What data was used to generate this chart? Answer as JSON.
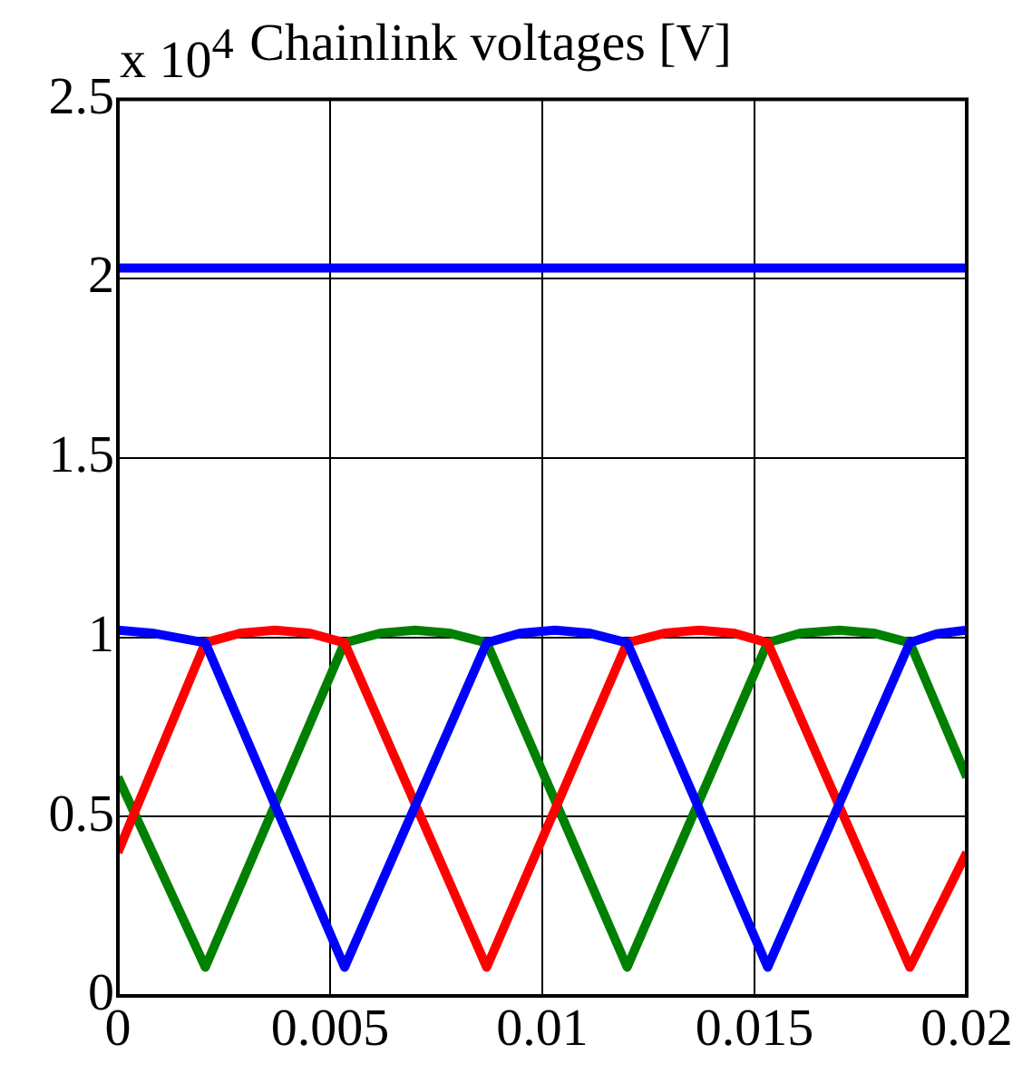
{
  "chart_data": {
    "type": "line",
    "title": "Chainlink voltages [V]",
    "annotations": [
      "x 10$^{4}$"
    ],
    "xlim": [
      0,
      0.02
    ],
    "xticks": [
      0,
      0.005,
      0.01,
      0.015,
      0.02
    ],
    "ylim": [
      0,
      2.5
    ],
    "yticks": [
      0,
      0.5,
      1,
      1.5,
      2,
      2.5
    ],
    "grid": true,
    "legend": false,
    "marker": "none",
    "line_style": "solid",
    "series": [
      {
        "color": "#0000ff",
        "x": [
          0,
          0.02
        ],
        "values": [
          2.03,
          2.03
        ]
      },
      {
        "color": "#0000ff",
        "x": [
          0,
          0.0008,
          0.00206,
          0.00534,
          0.00869,
          0.0095,
          0.0103,
          0.0111,
          0.012,
          0.01531,
          0.01866,
          0.0193,
          0.02
        ],
        "values": [
          1.02,
          1.012,
          0.985,
          0.08,
          0.985,
          1.012,
          1.02,
          1.012,
          0.985,
          0.08,
          0.985,
          1.01,
          1.02
        ]
      },
      {
        "color": "#ff0000",
        "x": [
          0,
          0.00206,
          0.0029,
          0.0037,
          0.0045,
          0.00534,
          0.00869,
          0.012,
          0.0129,
          0.0137,
          0.0145,
          0.01531,
          0.01866,
          0.02
        ],
        "values": [
          0.4,
          0.985,
          1.012,
          1.02,
          1.012,
          0.985,
          0.08,
          0.985,
          1.012,
          1.02,
          1.012,
          0.985,
          0.08,
          0.4
        ]
      },
      {
        "color": "#008000",
        "x": [
          0,
          0.00206,
          0.00534,
          0.0062,
          0.007,
          0.0078,
          0.00869,
          0.012,
          0.01531,
          0.0161,
          0.017,
          0.0178,
          0.01866,
          0.02
        ],
        "values": [
          0.61,
          0.08,
          0.985,
          1.012,
          1.02,
          1.012,
          0.985,
          0.08,
          0.985,
          1.012,
          1.02,
          1.012,
          0.985,
          0.61
        ]
      }
    ]
  }
}
